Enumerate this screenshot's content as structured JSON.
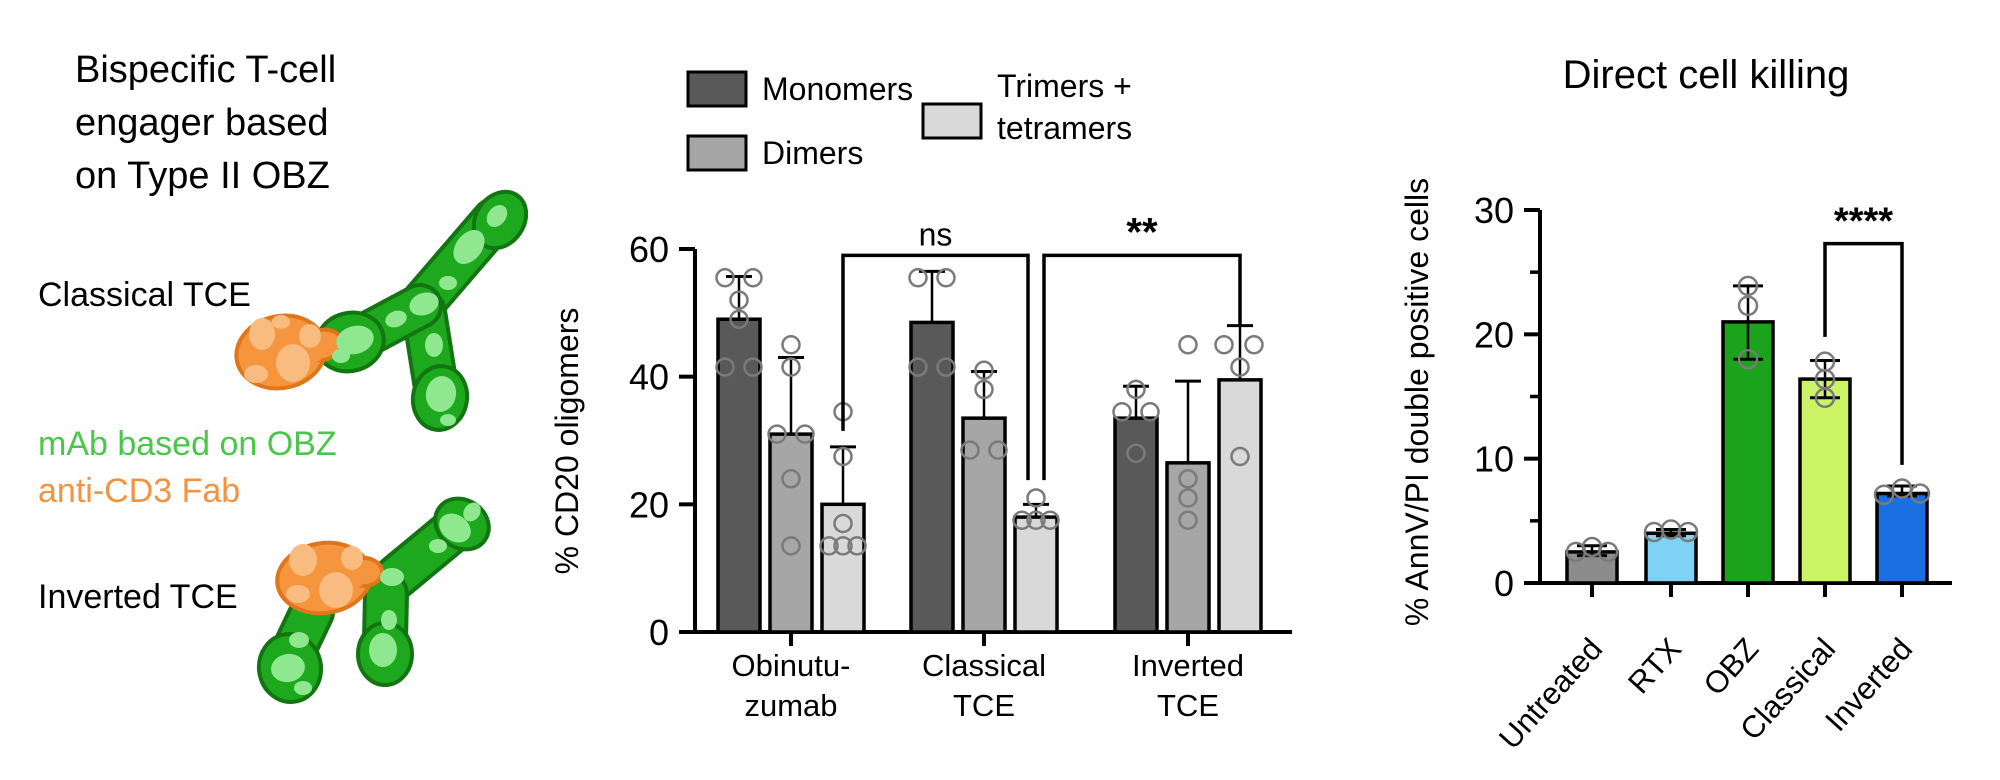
{
  "left_panel": {
    "title": "Bispecific T-cell engager based on Type II OBZ",
    "title_lines": [
      "Bispecific T-cell",
      "engager based",
      "on Type II OBZ"
    ],
    "classical_label": "Classical TCE",
    "inverted_label": "Inverted TCE",
    "caption": {
      "mab_text": "mAb based on OBZ",
      "fab_text": "anti-CD3 Fab",
      "mab_color": "#4bc64b",
      "fab_color": "#f5923e"
    },
    "diagram_colors": {
      "green_fill": "#1ea81e",
      "green_outline": "#127512",
      "green_light": "#8fe88f",
      "orange_fill": "#f5953d",
      "orange_outline": "#e0751a",
      "orange_light": "#f8bb80"
    }
  },
  "chart_data": [
    {
      "id": "cd20_oligomers",
      "type": "bar",
      "title": "",
      "ylabel": "% CD20 oligomers",
      "ylim": [
        0,
        60
      ],
      "yticks": [
        0,
        20,
        40,
        60
      ],
      "grid": false,
      "legend_position": "top",
      "categories": [
        [
          "Obinutu-",
          "zumab"
        ],
        [
          "Classical",
          "TCE"
        ],
        [
          "Inverted",
          "TCE"
        ]
      ],
      "series": [
        {
          "name": "Monomers",
          "color": "#595959",
          "values": [
            49,
            48.5,
            33.5
          ],
          "err_top": [
            55.7,
            56.5,
            38.5
          ],
          "points": [
            [
              [
                -14,
                55.5
              ],
              [
                14,
                55.5
              ],
              [
                0,
                52
              ],
              [
                0,
                49
              ],
              [
                -14,
                41.5
              ],
              [
                14,
                41.5
              ]
            ],
            [
              [
                -14,
                55.5
              ],
              [
                14,
                55.5
              ],
              [
                -14,
                41.5
              ],
              [
                14,
                41.5
              ]
            ],
            [
              [
                0,
                38
              ],
              [
                -14,
                34.5
              ],
              [
                14,
                34.5
              ],
              [
                0,
                28
              ]
            ]
          ]
        },
        {
          "name": "Dimers",
          "color": "#a6a6a6",
          "values": [
            31,
            33.5,
            26.5
          ],
          "err_top": [
            43,
            40.8,
            39.3
          ],
          "points": [
            [
              [
                0,
                45
              ],
              [
                0,
                41.5
              ],
              [
                -14,
                31
              ],
              [
                14,
                31
              ],
              [
                0,
                24
              ],
              [
                0,
                13.5
              ]
            ],
            [
              [
                0,
                41
              ],
              [
                0,
                38
              ],
              [
                -14,
                28.5
              ],
              [
                14,
                28.5
              ]
            ],
            [
              [
                0,
                45
              ],
              [
                0,
                24
              ],
              [
                0,
                21
              ],
              [
                0,
                17.5
              ]
            ]
          ]
        },
        {
          "name": "Trimers + tetramers",
          "legend_lines": [
            "Trimers +",
            "tetramers"
          ],
          "color": "#d9d9d9",
          "values": [
            20,
            18,
            39.5
          ],
          "err_top": [
            29,
            20,
            48
          ],
          "points": [
            [
              [
                0,
                34.5
              ],
              [
                0,
                27.5
              ],
              [
                0,
                17
              ],
              [
                -14,
                13.5
              ],
              [
                0,
                13.5
              ],
              [
                14,
                13.5
              ]
            ],
            [
              [
                0,
                21
              ],
              [
                -14,
                17.5
              ],
              [
                0,
                17.5
              ],
              [
                14,
                17.5
              ]
            ],
            [
              [
                -16,
                45
              ],
              [
                14,
                45
              ],
              [
                0,
                41.5
              ],
              [
                0,
                27.5
              ]
            ]
          ]
        }
      ],
      "annotations": [
        {
          "label": "ns",
          "from_group": 0,
          "from_series": 2,
          "to_group": 1,
          "to_series": 2,
          "to_dx": -8,
          "bar_y": 59,
          "from_leg": 31.5,
          "to_leg": 23.8
        },
        {
          "label": "**",
          "from_group": 1,
          "from_series": 2,
          "from_dx": 8,
          "to_group": 2,
          "to_series": 2,
          "bar_y": 59,
          "from_leg": 23.8,
          "to_leg": 48
        }
      ]
    },
    {
      "id": "direct_cell_killing",
      "type": "bar",
      "title": "Direct cell killing",
      "ylabel": "% AnnV/PI double positive cells",
      "ylim": [
        0,
        30
      ],
      "yticks": [
        0,
        10,
        20,
        30
      ],
      "yticks_minor": [
        5,
        15,
        25
      ],
      "grid": false,
      "categories": [
        "Untreated",
        "RTX",
        "OBZ",
        "Classical",
        "Inverted"
      ],
      "values": [
        2.5,
        4,
        21,
        16.4,
        7.2
      ],
      "bar_colors": [
        "#8c8c8c",
        "#7fd2f5",
        "#1ca31c",
        "#ccf266",
        "#1b6fe0"
      ],
      "err_top": [
        3,
        4.3,
        23.9,
        17.9,
        7.8
      ],
      "err_bottom": [
        2.2,
        3.8,
        18,
        14.9,
        7
      ],
      "points": [
        [
          [
            -16,
            2.5
          ],
          [
            0,
            2.9
          ],
          [
            16,
            2.5
          ]
        ],
        [
          [
            -17,
            4.1
          ],
          [
            0,
            4.3
          ],
          [
            17,
            4.1
          ]
        ],
        [
          [
            0,
            23.9
          ],
          [
            0,
            22.3
          ],
          [
            0,
            18
          ]
        ],
        [
          [
            0,
            17.8
          ],
          [
            0,
            16.4
          ],
          [
            0,
            14.9
          ]
        ],
        [
          [
            -18,
            7.1
          ],
          [
            0,
            7.6
          ],
          [
            18,
            7.2
          ]
        ]
      ],
      "annotations": [
        {
          "label": "****",
          "from_cat": 3,
          "to_cat": 4,
          "bar_y": 27.3,
          "from_leg": 19.8,
          "to_leg": 9.5
        }
      ]
    }
  ]
}
